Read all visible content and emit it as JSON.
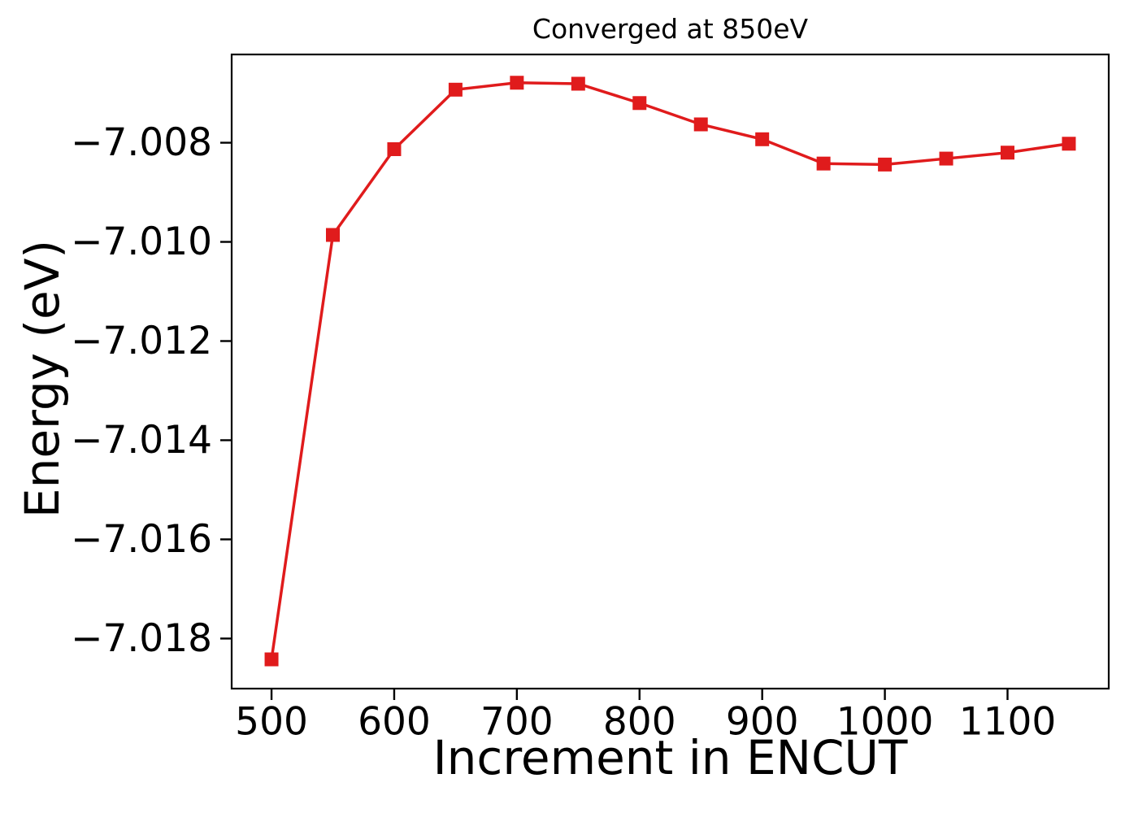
{
  "chart_data": {
    "type": "line",
    "title": "Converged at 850eV",
    "xlabel": "Increment in ENCUT",
    "ylabel": "Energy (eV)",
    "x": [
      500,
      550,
      600,
      650,
      700,
      750,
      800,
      850,
      900,
      950,
      1000,
      1050,
      1100,
      1150
    ],
    "y": [
      -7.01842,
      -7.00986,
      -7.00813,
      -7.00693,
      -7.00679,
      -7.00681,
      -7.0072,
      -7.00763,
      -7.00793,
      -7.00842,
      -7.00844,
      -7.00832,
      -7.0082,
      -7.00802
    ],
    "xlim": [
      467.5,
      1182.5
    ],
    "ylim": [
      -7.01901,
      -7.00622
    ],
    "xtick_values": [
      500,
      600,
      700,
      800,
      900,
      1000,
      1100
    ],
    "xtick_labels": [
      "500",
      "600",
      "700",
      "800",
      "900",
      "1000",
      "1100"
    ],
    "ytick_values": [
      -7.008,
      -7.01,
      -7.012,
      -7.014,
      -7.016,
      -7.018
    ],
    "ytick_labels": [
      "−7.008",
      "−7.010",
      "−7.012",
      "−7.014",
      "−7.016",
      "−7.018"
    ],
    "line_color": "#e01b1c",
    "axis_color": "#000000",
    "text_color": "#000000",
    "marker": "square",
    "grid": false,
    "legend": null
  }
}
